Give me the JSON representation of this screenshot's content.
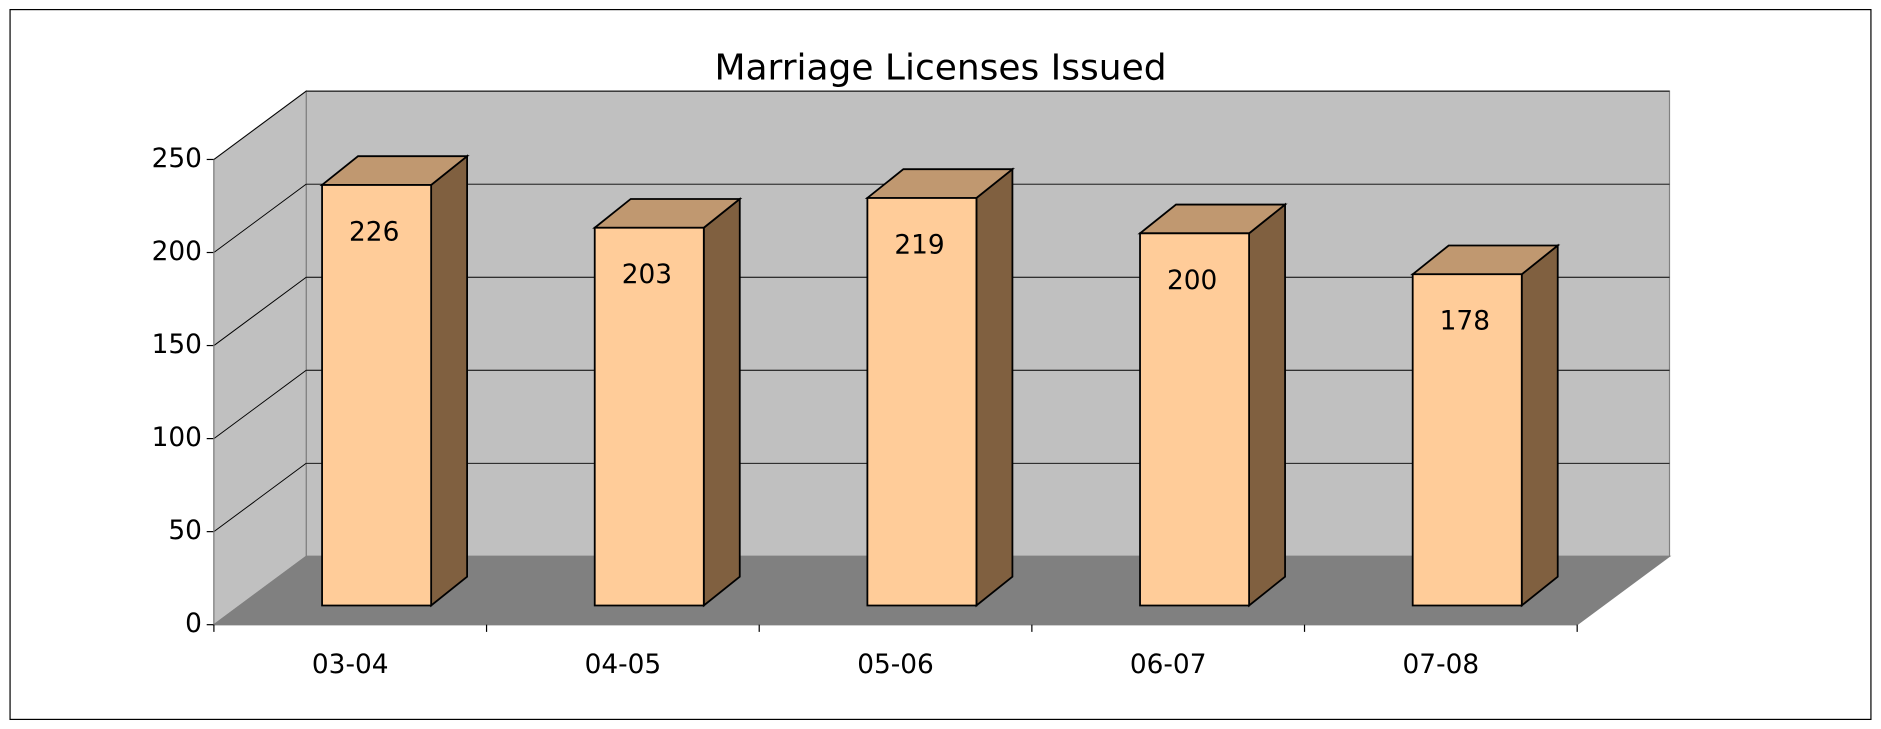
{
  "chart_data": {
    "type": "bar",
    "title": "Marriage Licenses Issued",
    "categories": [
      "03-04",
      "04-05",
      "05-06",
      "06-07",
      "07-08"
    ],
    "values": [
      226,
      203,
      219,
      200,
      178
    ],
    "color": "#ffcc99",
    "ylim": [
      0,
      250
    ],
    "yticks": [
      0,
      50,
      100,
      150,
      200,
      250
    ],
    "grid": true
  }
}
